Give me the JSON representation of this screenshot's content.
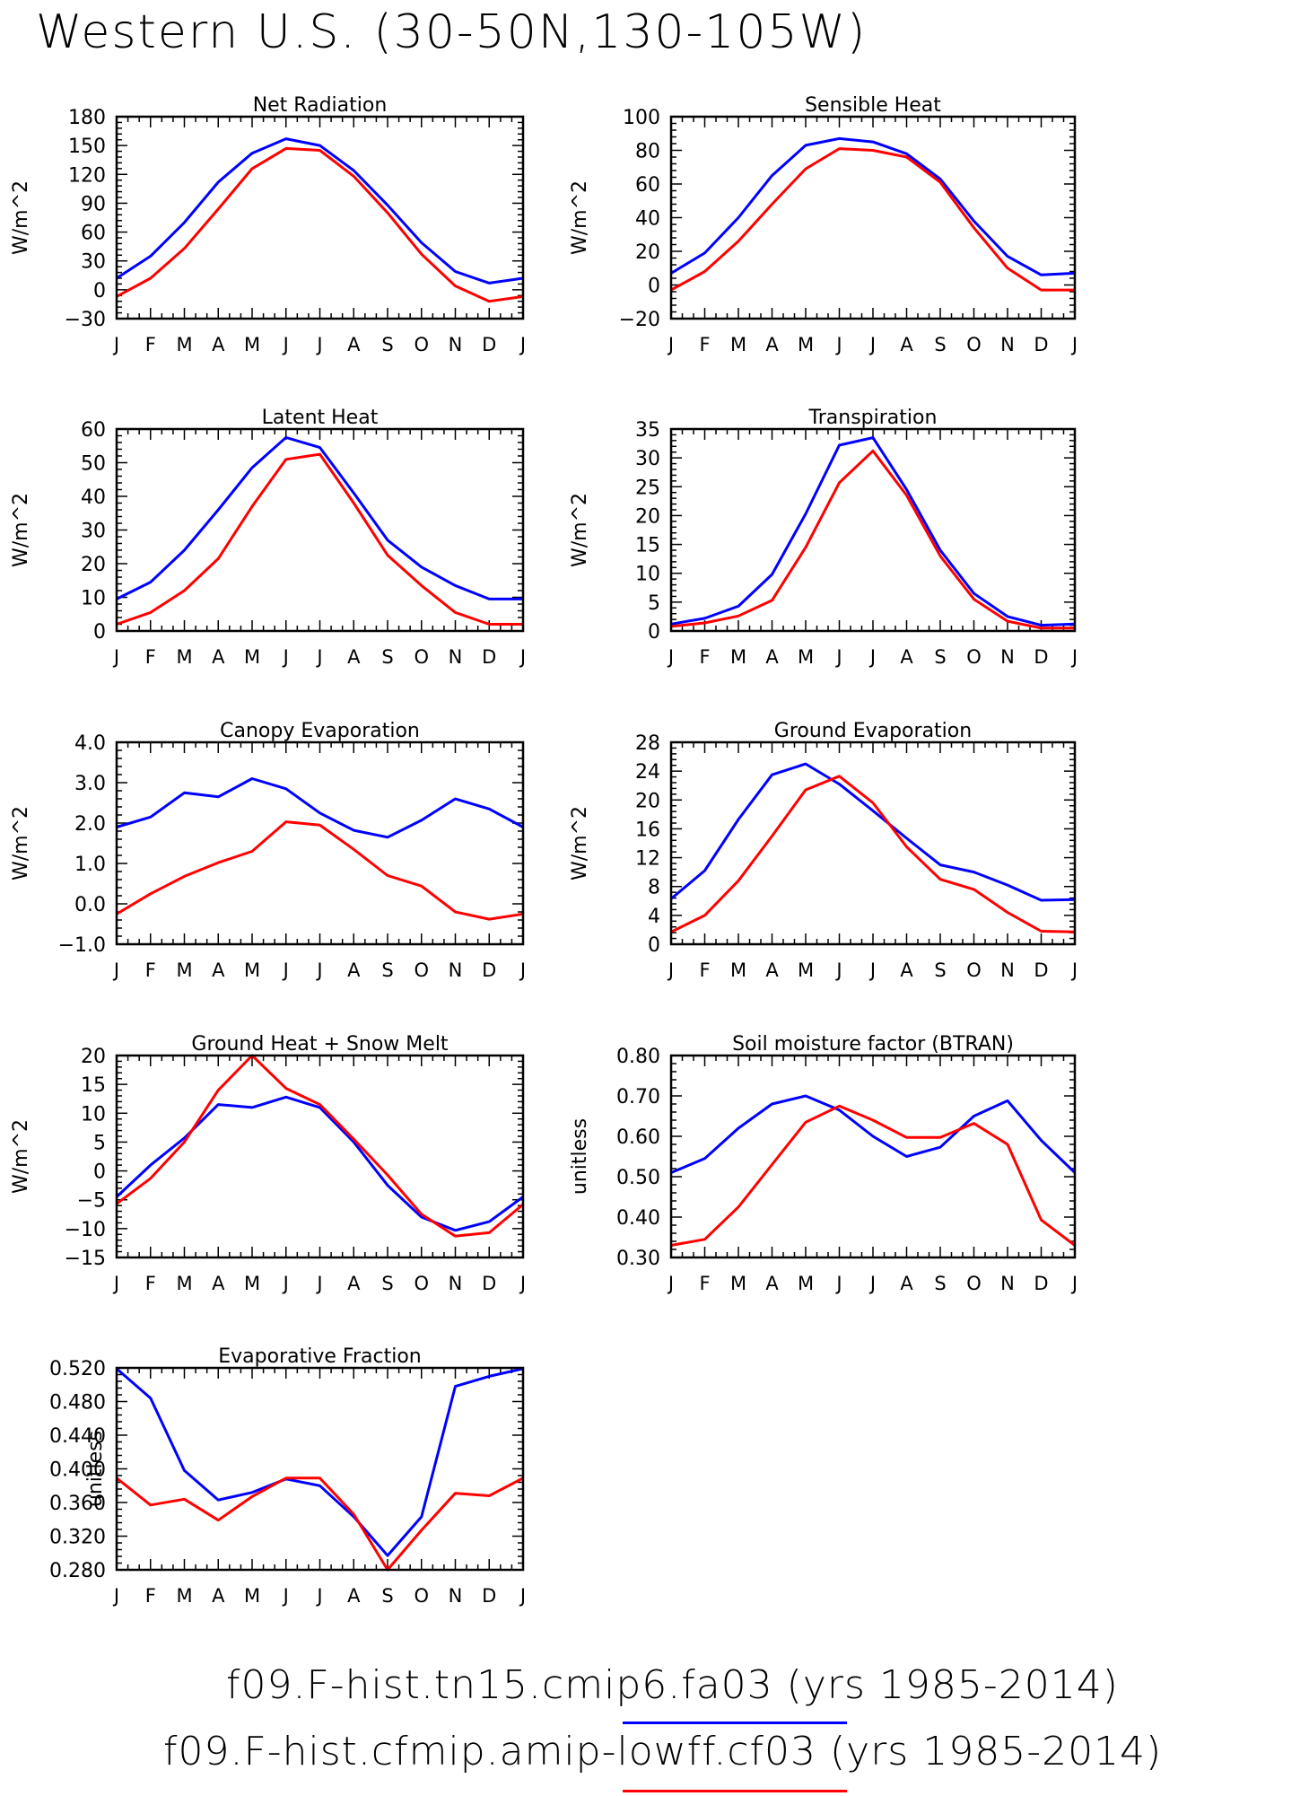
{
  "title": "Western U.S. (30-50N,130-105W)",
  "legend": [
    {
      "label": "f09.F-hist.tn15.cmip6.fa03 (yrs 1985-2014)",
      "color": "#0000ff"
    },
    {
      "label": "f09.F-hist.cfmip.amip-lowff.cf03 (yrs 1985-2014)",
      "color": "#ff0000"
    }
  ],
  "chart_data": [
    {
      "type": "line",
      "title": "Net Radiation",
      "ylabel": "W/m^2",
      "x": [
        "J",
        "F",
        "M",
        "A",
        "M",
        "J",
        "J",
        "A",
        "S",
        "O",
        "N",
        "D",
        "J"
      ],
      "ylim": [
        -30,
        180
      ],
      "yticks": [
        "-30",
        "0",
        "30",
        "60",
        "90",
        "120",
        "150",
        "180"
      ],
      "series": [
        {
          "color": "#0000ff",
          "values": [
            12,
            35,
            70,
            112,
            142,
            157,
            150,
            124,
            88,
            49,
            19,
            7,
            12
          ]
        },
        {
          "color": "#ff0000",
          "values": [
            -7,
            12,
            43,
            84,
            126,
            147,
            145,
            118,
            80,
            37,
            4,
            -12,
            -7
          ]
        }
      ]
    },
    {
      "type": "line",
      "title": "Sensible Heat",
      "ylabel": "W/m^2",
      "x": [
        "J",
        "F",
        "M",
        "A",
        "M",
        "J",
        "J",
        "A",
        "S",
        "O",
        "N",
        "D",
        "J"
      ],
      "ylim": [
        -20,
        100
      ],
      "yticks": [
        "-20",
        "0",
        "20",
        "40",
        "60",
        "80",
        "100"
      ],
      "series": [
        {
          "color": "#0000ff",
          "values": [
            7,
            19,
            40,
            65,
            83,
            87,
            85,
            78,
            63,
            38,
            17,
            6,
            7
          ]
        },
        {
          "color": "#ff0000",
          "values": [
            -3,
            8,
            26,
            48,
            69,
            81,
            80,
            76,
            61,
            34,
            10,
            -3,
            -3
          ]
        }
      ]
    },
    {
      "type": "line",
      "title": "Latent Heat",
      "ylabel": "W/m^2",
      "x": [
        "J",
        "F",
        "M",
        "A",
        "M",
        "J",
        "J",
        "A",
        "S",
        "O",
        "N",
        "D",
        "J"
      ],
      "ylim": [
        0,
        60
      ],
      "yticks": [
        "0",
        "10",
        "20",
        "30",
        "40",
        "50",
        "60"
      ],
      "series": [
        {
          "color": "#0000ff",
          "values": [
            9.5,
            14.5,
            24,
            36,
            48.5,
            57.5,
            54.5,
            41,
            27,
            19,
            13.5,
            9.5,
            9.5
          ]
        },
        {
          "color": "#ff0000",
          "values": [
            2,
            5.5,
            12,
            21.5,
            37,
            51,
            52.5,
            38,
            22.5,
            13.5,
            5.5,
            2,
            2
          ]
        }
      ]
    },
    {
      "type": "line",
      "title": "Transpiration",
      "ylabel": "W/m^2",
      "x": [
        "J",
        "F",
        "M",
        "A",
        "M",
        "J",
        "J",
        "A",
        "S",
        "O",
        "N",
        "D",
        "J"
      ],
      "ylim": [
        0,
        35
      ],
      "yticks": [
        "0",
        "5",
        "10",
        "15",
        "20",
        "25",
        "30",
        "35"
      ],
      "series": [
        {
          "color": "#0000ff",
          "values": [
            1.2,
            2.2,
            4.3,
            9.8,
            20.3,
            32.2,
            33.5,
            24.5,
            14,
            6.5,
            2.5,
            1,
            1.2
          ]
        },
        {
          "color": "#ff0000",
          "values": [
            0.8,
            1.4,
            2.6,
            5.3,
            14.5,
            25.7,
            31.2,
            23.5,
            13,
            5.5,
            1.7,
            0.5,
            0.5
          ]
        }
      ]
    },
    {
      "type": "line",
      "title": "Canopy Evaporation",
      "ylabel": "W/m^2",
      "x": [
        "J",
        "F",
        "M",
        "A",
        "M",
        "J",
        "J",
        "A",
        "S",
        "O",
        "N",
        "D",
        "J"
      ],
      "ylim": [
        -1.0,
        4.0
      ],
      "yticks": [
        "-1.0",
        "0.0",
        "1.0",
        "2.0",
        "3.0",
        "4.0"
      ],
      "series": [
        {
          "color": "#0000ff",
          "values": [
            1.9,
            2.15,
            2.75,
            2.65,
            3.1,
            2.85,
            2.25,
            1.82,
            1.65,
            2.07,
            2.6,
            2.35,
            1.9
          ]
        },
        {
          "color": "#ff0000",
          "values": [
            -0.25,
            0.25,
            0.68,
            1.02,
            1.3,
            2.03,
            1.95,
            1.35,
            0.7,
            0.44,
            -0.2,
            -0.38,
            -0.25
          ]
        }
      ]
    },
    {
      "type": "line",
      "title": "Ground Evaporation",
      "ylabel": "W/m^2",
      "x": [
        "J",
        "F",
        "M",
        "A",
        "M",
        "J",
        "J",
        "A",
        "S",
        "O",
        "N",
        "D",
        "J"
      ],
      "ylim": [
        0,
        28
      ],
      "yticks": [
        "0",
        "4",
        "8",
        "12",
        "16",
        "20",
        "24",
        "28"
      ],
      "series": [
        {
          "color": "#0000ff",
          "values": [
            6.3,
            10.2,
            17.3,
            23.5,
            25,
            22.2,
            18.5,
            14.7,
            11,
            10,
            8.2,
            6.1,
            6.2
          ]
        },
        {
          "color": "#ff0000",
          "values": [
            1.7,
            4,
            8.8,
            15,
            21.4,
            23.3,
            19.6,
            13.5,
            9,
            7.6,
            4.4,
            1.8,
            1.7
          ]
        }
      ]
    },
    {
      "type": "line",
      "title": "Ground Heat + Snow Melt",
      "ylabel": "W/m^2",
      "x": [
        "J",
        "F",
        "M",
        "A",
        "M",
        "J",
        "J",
        "A",
        "S",
        "O",
        "N",
        "D",
        "J"
      ],
      "ylim": [
        -15,
        20
      ],
      "yticks": [
        "-15",
        "-10",
        "-5",
        "0",
        "5",
        "10",
        "15",
        "20"
      ],
      "series": [
        {
          "color": "#0000ff",
          "values": [
            -4.5,
            1,
            5.7,
            11.5,
            11,
            12.8,
            11,
            5,
            -2.5,
            -8,
            -10.3,
            -8.8,
            -4.5
          ]
        },
        {
          "color": "#ff0000",
          "values": [
            -5.7,
            -1.3,
            5,
            14,
            20,
            14.3,
            11.5,
            5.5,
            -0.7,
            -7.5,
            -11.3,
            -10.7,
            -5.8
          ]
        }
      ]
    },
    {
      "type": "line",
      "title": "Soil moisture factor (BTRAN)",
      "ylabel": "unitless",
      "x": [
        "J",
        "F",
        "M",
        "A",
        "M",
        "J",
        "J",
        "A",
        "S",
        "O",
        "N",
        "D",
        "J"
      ],
      "ylim": [
        0.3,
        0.8
      ],
      "yticks": [
        "0.30",
        "0.40",
        "0.50",
        "0.60",
        "0.70",
        "0.80"
      ],
      "series": [
        {
          "color": "#0000ff",
          "values": [
            0.51,
            0.545,
            0.62,
            0.68,
            0.7,
            0.665,
            0.6,
            0.55,
            0.573,
            0.65,
            0.688,
            0.59,
            0.51
          ]
        },
        {
          "color": "#ff0000",
          "values": [
            0.33,
            0.345,
            0.425,
            0.53,
            0.635,
            0.675,
            0.64,
            0.597,
            0.597,
            0.632,
            0.58,
            0.393,
            0.33
          ]
        }
      ]
    },
    {
      "type": "line",
      "title": "Evaporative Fraction",
      "ylabel": "unitless",
      "x": [
        "J",
        "F",
        "M",
        "A",
        "M",
        "J",
        "J",
        "A",
        "S",
        "O",
        "N",
        "D",
        "J"
      ],
      "ylim": [
        0.28,
        0.52
      ],
      "yticks": [
        "0.280",
        "0.320",
        "0.360",
        "0.400",
        "0.440",
        "0.480",
        "0.520"
      ],
      "series": [
        {
          "color": "#0000ff",
          "values": [
            0.519,
            0.484,
            0.398,
            0.363,
            0.372,
            0.388,
            0.38,
            0.343,
            0.297,
            0.343,
            0.498,
            0.51,
            0.519
          ]
        },
        {
          "color": "#ff0000",
          "values": [
            0.389,
            0.357,
            0.364,
            0.339,
            0.367,
            0.389,
            0.389,
            0.346,
            0.28,
            0.327,
            0.371,
            0.368,
            0.389
          ]
        }
      ]
    }
  ]
}
